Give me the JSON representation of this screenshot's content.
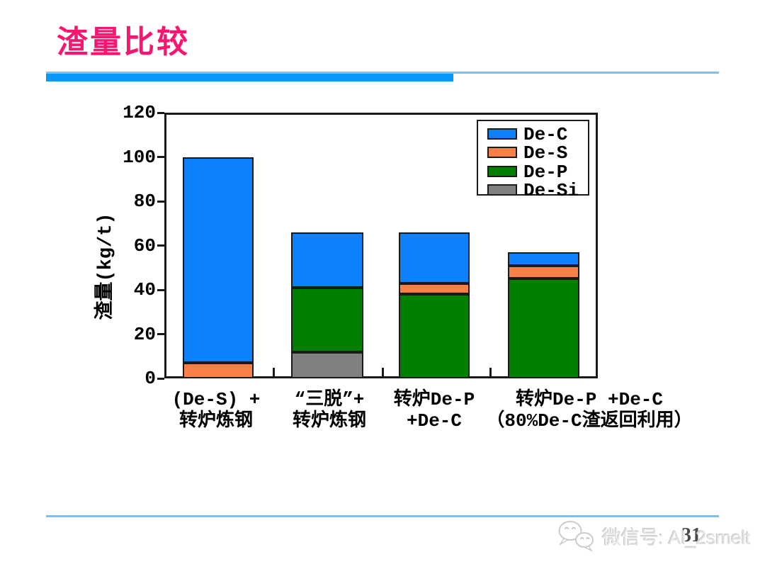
{
  "slide": {
    "title": "渣量比较",
    "title_color": "#FB1470",
    "accent_bar_color": "#0998FC",
    "accent_line_color": "#7FBEEC",
    "page_number": "31"
  },
  "watermark": {
    "icon": "wechat-icon",
    "text": "微信号: AI_2smelt"
  },
  "chart_data": {
    "type": "bar",
    "stacked": true,
    "title": "",
    "xlabel": "",
    "ylabel": "渣量(kg/t)",
    "ylim": [
      0,
      120
    ],
    "yticks": [
      0,
      20,
      40,
      60,
      80,
      100,
      120
    ],
    "grid": false,
    "categories": [
      "(De-S) + 转炉炼钢",
      "“三脱”+ 转炉炼钢",
      "转炉De-P +De-C",
      "转炉De-P +De-C（80%De-C渣返回利用）"
    ],
    "categories_lines": [
      [
        "(De-S) +",
        "转炉炼钢"
      ],
      [
        "“三脱”+",
        "转炉炼钢"
      ],
      [
        "转炉De-P",
        "+De-C"
      ],
      [
        "转炉De-P +De-C",
        "（80%De-C渣返回利用）"
      ]
    ],
    "series": [
      {
        "name": "De-Si",
        "color": "#808080",
        "values": [
          0,
          12,
          0,
          0
        ]
      },
      {
        "name": "De-P",
        "color": "#008000",
        "values": [
          0,
          29,
          38,
          45
        ]
      },
      {
        "name": "De-S",
        "color": "#F98148",
        "values": [
          7,
          0,
          5,
          6
        ]
      },
      {
        "name": "De-C",
        "color": "#0F80FB",
        "values": [
          93,
          25,
          23,
          6
        ]
      }
    ],
    "stack_order": "bottom-to-top",
    "totals": [
      100,
      66,
      66,
      57
    ],
    "legend": {
      "position": "top-right",
      "entries": [
        "De-C",
        "De-S",
        "De-P",
        "De-Si"
      ]
    }
  }
}
